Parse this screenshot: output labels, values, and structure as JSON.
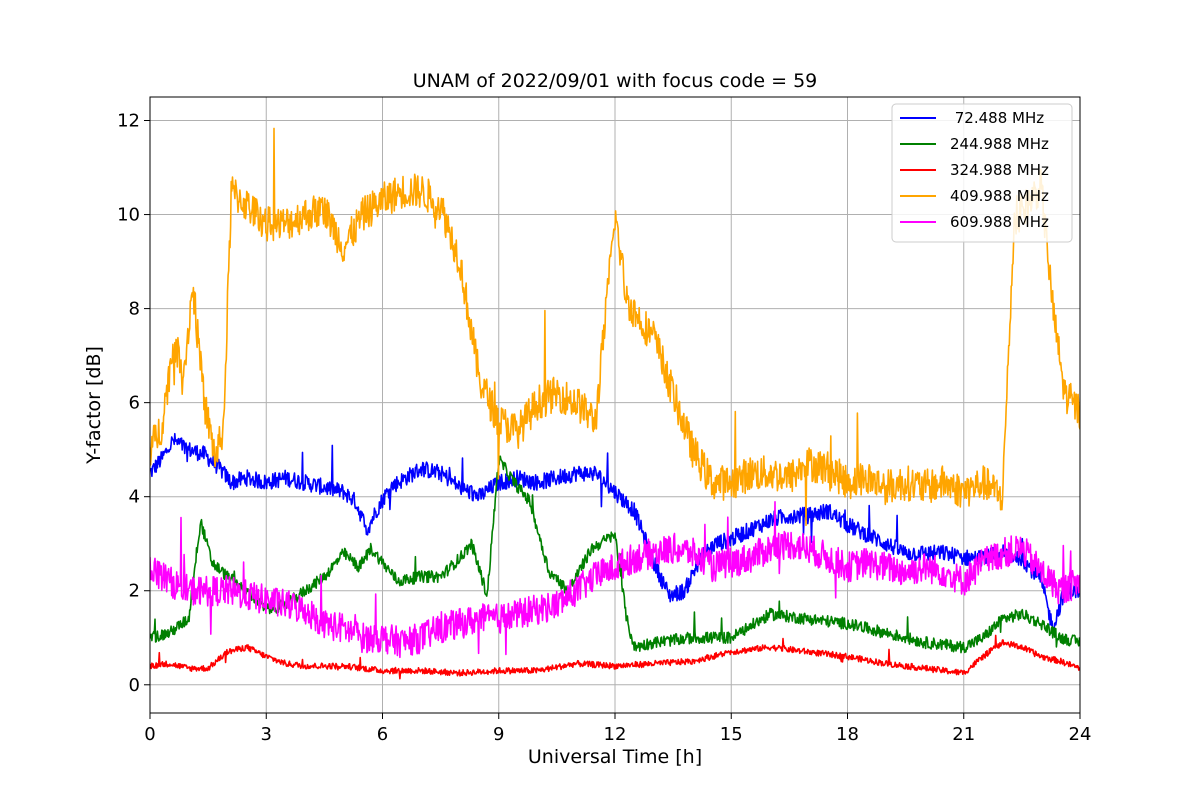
{
  "chart_data": {
    "type": "line",
    "title": "UNAM of 2022/09/01 with focus code = 59",
    "xlabel": "Universal Time [h]",
    "ylabel": "Y-factor [dB]",
    "xlim": [
      0,
      24
    ],
    "ylim": [
      -0.6,
      12.5
    ],
    "xticks": [
      0,
      3,
      6,
      9,
      12,
      15,
      18,
      21,
      24
    ],
    "yticks": [
      0,
      2,
      4,
      6,
      8,
      10,
      12
    ],
    "grid": true,
    "legend_position": "top-right",
    "series": [
      {
        "name": " 72.488 MHz",
        "color": "#0000ff",
        "noise": 0.35,
        "points": [
          [
            0,
            4.5
          ],
          [
            0.3,
            4.8
          ],
          [
            0.6,
            5.2
          ],
          [
            1,
            5.0
          ],
          [
            1.4,
            4.9
          ],
          [
            1.8,
            4.6
          ],
          [
            2.1,
            4.3
          ],
          [
            2.5,
            4.4
          ],
          [
            3,
            4.3
          ],
          [
            3.5,
            4.4
          ],
          [
            4,
            4.3
          ],
          [
            4.5,
            4.2
          ],
          [
            5,
            4.1
          ],
          [
            5.3,
            3.9
          ],
          [
            5.6,
            3.3
          ],
          [
            5.9,
            3.8
          ],
          [
            6.2,
            4.2
          ],
          [
            6.6,
            4.4
          ],
          [
            7,
            4.6
          ],
          [
            7.5,
            4.5
          ],
          [
            8,
            4.2
          ],
          [
            8.5,
            4.0
          ],
          [
            9,
            4.3
          ],
          [
            9.5,
            4.4
          ],
          [
            10,
            4.3
          ],
          [
            10.5,
            4.4
          ],
          [
            11,
            4.5
          ],
          [
            11.5,
            4.5
          ],
          [
            12,
            4.1
          ],
          [
            12.5,
            3.7
          ],
          [
            13,
            2.6
          ],
          [
            13.4,
            1.9
          ],
          [
            13.8,
            2.0
          ],
          [
            14.2,
            2.7
          ],
          [
            14.6,
            3.0
          ],
          [
            15,
            3.1
          ],
          [
            15.5,
            3.3
          ],
          [
            16,
            3.5
          ],
          [
            16.5,
            3.6
          ],
          [
            17,
            3.6
          ],
          [
            17.5,
            3.7
          ],
          [
            18,
            3.4
          ],
          [
            18.5,
            3.2
          ],
          [
            19,
            3.0
          ],
          [
            19.5,
            2.8
          ],
          [
            20,
            2.8
          ],
          [
            20.5,
            2.8
          ],
          [
            21,
            2.7
          ],
          [
            21.5,
            2.7
          ],
          [
            22,
            2.8
          ],
          [
            22.5,
            2.7
          ],
          [
            23,
            2.2
          ],
          [
            23.3,
            1.2
          ],
          [
            23.6,
            2.0
          ],
          [
            24,
            2.0
          ]
        ]
      },
      {
        "name": "244.988 MHz",
        "color": "#008000",
        "noise": 0.25,
        "points": [
          [
            0,
            1.0
          ],
          [
            0.5,
            1.1
          ],
          [
            1,
            1.4
          ],
          [
            1.3,
            3.5
          ],
          [
            1.6,
            2.6
          ],
          [
            2,
            2.3
          ],
          [
            2.5,
            2.0
          ],
          [
            3,
            1.6
          ],
          [
            3.5,
            1.7
          ],
          [
            4,
            2.0
          ],
          [
            4.5,
            2.3
          ],
          [
            5,
            2.8
          ],
          [
            5.4,
            2.5
          ],
          [
            5.7,
            2.9
          ],
          [
            6,
            2.6
          ],
          [
            6.4,
            2.2
          ],
          [
            7,
            2.3
          ],
          [
            7.5,
            2.3
          ],
          [
            8,
            2.7
          ],
          [
            8.3,
            3.0
          ],
          [
            8.7,
            1.9
          ],
          [
            9,
            4.8
          ],
          [
            9.4,
            4.3
          ],
          [
            9.8,
            3.9
          ],
          [
            10.3,
            2.4
          ],
          [
            10.8,
            2.0
          ],
          [
            11.4,
            2.9
          ],
          [
            12,
            3.2
          ],
          [
            12.3,
            1.4
          ],
          [
            12.5,
            0.8
          ],
          [
            13,
            0.9
          ],
          [
            14,
            1.0
          ],
          [
            15,
            1.0
          ],
          [
            16,
            1.5
          ],
          [
            17,
            1.4
          ],
          [
            18,
            1.3
          ],
          [
            19,
            1.1
          ],
          [
            20,
            0.9
          ],
          [
            21,
            0.8
          ],
          [
            21.5,
            1.0
          ],
          [
            22,
            1.4
          ],
          [
            22.5,
            1.5
          ],
          [
            23,
            1.3
          ],
          [
            23.5,
            1.0
          ],
          [
            24,
            0.9
          ]
        ]
      },
      {
        "name": "324.988 MHz",
        "color": "#ff0000",
        "noise": 0.13,
        "points": [
          [
            0,
            0.4
          ],
          [
            0.5,
            0.45
          ],
          [
            1,
            0.35
          ],
          [
            1.5,
            0.35
          ],
          [
            2,
            0.7
          ],
          [
            2.5,
            0.8
          ],
          [
            3,
            0.6
          ],
          [
            3.5,
            0.45
          ],
          [
            4,
            0.4
          ],
          [
            5,
            0.4
          ],
          [
            6,
            0.3
          ],
          [
            7,
            0.3
          ],
          [
            8,
            0.25
          ],
          [
            9,
            0.3
          ],
          [
            10,
            0.3
          ],
          [
            11,
            0.45
          ],
          [
            12,
            0.4
          ],
          [
            13,
            0.45
          ],
          [
            14,
            0.5
          ],
          [
            15,
            0.7
          ],
          [
            16,
            0.8
          ],
          [
            17,
            0.7
          ],
          [
            18,
            0.6
          ],
          [
            19,
            0.45
          ],
          [
            20,
            0.35
          ],
          [
            21,
            0.25
          ],
          [
            21.5,
            0.6
          ],
          [
            22,
            0.9
          ],
          [
            22.5,
            0.8
          ],
          [
            23,
            0.6
          ],
          [
            23.5,
            0.5
          ],
          [
            24,
            0.35
          ]
        ]
      },
      {
        "name": "409.988 MHz",
        "color": "#ffa500",
        "noise": 0.75,
        "points": [
          [
            0,
            5.0
          ],
          [
            0.3,
            5.5
          ],
          [
            0.6,
            7.2
          ],
          [
            0.9,
            6.8
          ],
          [
            1.1,
            8.5
          ],
          [
            1.4,
            6.0
          ],
          [
            1.7,
            4.8
          ],
          [
            1.9,
            5.5
          ],
          [
            2.1,
            10.5
          ],
          [
            2.5,
            10.2
          ],
          [
            3,
            9.8
          ],
          [
            3.5,
            9.8
          ],
          [
            4,
            10.0
          ],
          [
            4.5,
            10.1
          ],
          [
            5,
            9.3
          ],
          [
            5.5,
            10.0
          ],
          [
            6,
            10.3
          ],
          [
            6.5,
            10.5
          ],
          [
            7,
            10.5
          ],
          [
            7.5,
            10.2
          ],
          [
            8,
            9.0
          ],
          [
            8.3,
            7.5
          ],
          [
            8.5,
            6.5
          ],
          [
            9,
            5.6
          ],
          [
            9.5,
            5.4
          ],
          [
            10,
            6.0
          ],
          [
            10.5,
            6.2
          ],
          [
            11,
            6.0
          ],
          [
            11.5,
            5.6
          ],
          [
            12,
            10.0
          ],
          [
            12.3,
            8.2
          ],
          [
            12.6,
            7.8
          ],
          [
            13,
            7.4
          ],
          [
            13.5,
            6.2
          ],
          [
            14,
            5.0
          ],
          [
            14.5,
            4.3
          ],
          [
            15,
            4.3
          ],
          [
            15.5,
            4.5
          ],
          [
            16,
            4.5
          ],
          [
            16.5,
            4.4
          ],
          [
            17,
            4.7
          ],
          [
            17.5,
            4.6
          ],
          [
            18,
            4.3
          ],
          [
            18.5,
            4.4
          ],
          [
            19,
            4.2
          ],
          [
            19.5,
            4.3
          ],
          [
            20,
            4.2
          ],
          [
            20.5,
            4.3
          ],
          [
            21,
            4.1
          ],
          [
            21.5,
            4.3
          ],
          [
            22,
            4.0
          ],
          [
            22.3,
            9.8
          ],
          [
            22.7,
            10.3
          ],
          [
            23,
            10.6
          ],
          [
            23.3,
            8.0
          ],
          [
            23.6,
            6.2
          ],
          [
            24,
            5.8
          ]
        ]
      },
      {
        "name": "609.988 MHz",
        "color": "#ff00ff",
        "noise": 0.65,
        "points": [
          [
            0,
            2.5
          ],
          [
            0.5,
            2.2
          ],
          [
            1,
            2.0
          ],
          [
            1.5,
            2.0
          ],
          [
            2,
            2.0
          ],
          [
            2.5,
            1.9
          ],
          [
            3,
            1.8
          ],
          [
            3.5,
            1.7
          ],
          [
            4,
            1.6
          ],
          [
            4.5,
            1.3
          ],
          [
            5,
            1.2
          ],
          [
            5.5,
            1.0
          ],
          [
            6,
            1.0
          ],
          [
            6.5,
            0.9
          ],
          [
            7,
            1.0
          ],
          [
            7.5,
            1.2
          ],
          [
            8,
            1.3
          ],
          [
            8.5,
            1.4
          ],
          [
            9,
            1.4
          ],
          [
            9.5,
            1.5
          ],
          [
            10,
            1.6
          ],
          [
            10.5,
            1.7
          ],
          [
            11,
            2.0
          ],
          [
            11.5,
            2.3
          ],
          [
            12,
            2.5
          ],
          [
            12.5,
            2.7
          ],
          [
            13,
            2.8
          ],
          [
            13.5,
            2.9
          ],
          [
            14,
            2.8
          ],
          [
            14.5,
            2.5
          ],
          [
            15,
            2.6
          ],
          [
            15.5,
            2.7
          ],
          [
            16,
            2.9
          ],
          [
            16.5,
            3.0
          ],
          [
            17,
            2.9
          ],
          [
            17.5,
            2.7
          ],
          [
            18,
            2.5
          ],
          [
            18.5,
            2.6
          ],
          [
            19,
            2.5
          ],
          [
            19.5,
            2.4
          ],
          [
            20,
            2.5
          ],
          [
            20.5,
            2.4
          ],
          [
            21,
            2.2
          ],
          [
            21.5,
            2.6
          ],
          [
            22,
            2.8
          ],
          [
            22.5,
            2.9
          ],
          [
            23,
            2.4
          ],
          [
            23.5,
            2.0
          ],
          [
            24,
            2.2
          ]
        ]
      }
    ]
  }
}
